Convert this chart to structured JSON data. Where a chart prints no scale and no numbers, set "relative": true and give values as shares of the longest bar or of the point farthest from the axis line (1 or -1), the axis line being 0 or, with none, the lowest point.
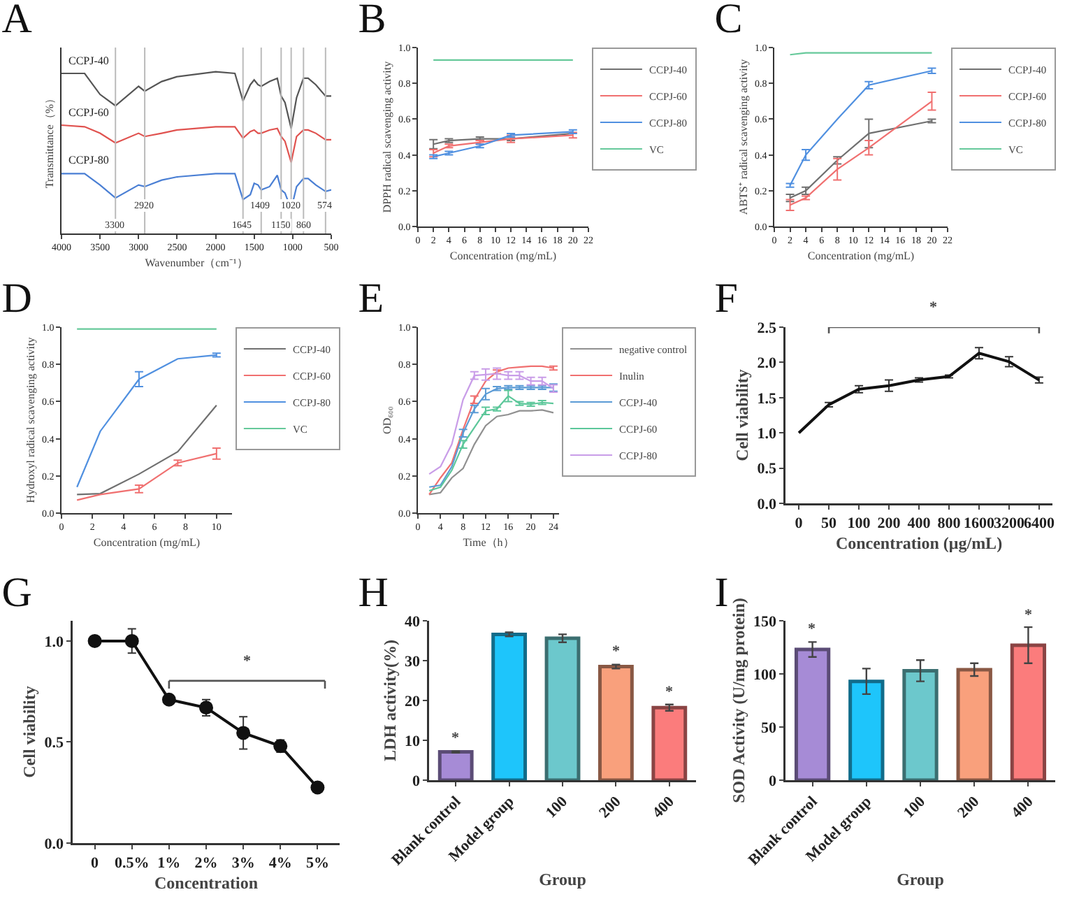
{
  "chart_data": [
    {
      "type": "line",
      "title": "A",
      "xlabel": "Wavenumber（cm⁻¹）",
      "ylabel": "Transmittance（%）",
      "relative": true,
      "legend": false,
      "grid": false,
      "xlim": [
        4000,
        500
      ],
      "xticks": [
        4000,
        3500,
        3000,
        2500,
        2000,
        1500,
        1000,
        500
      ],
      "x": [
        4000,
        3700,
        3500,
        3300,
        3000,
        2920,
        2700,
        2500,
        2000,
        1750,
        1645,
        1550,
        1500,
        1450,
        1409,
        1300,
        1200,
        1150,
        1100,
        1020,
        950,
        860,
        800,
        700,
        574,
        500
      ],
      "series": [
        {
          "name": "CCPJ-40",
          "color": "#555555",
          "values": [
            0.99,
            0.99,
            0.86,
            0.79,
            0.91,
            0.88,
            0.94,
            0.97,
            1.0,
            0.99,
            0.82,
            0.92,
            0.95,
            0.92,
            0.91,
            0.94,
            0.96,
            0.85,
            0.81,
            0.65,
            0.84,
            0.96,
            0.96,
            0.92,
            0.85,
            0.85
          ]
        },
        {
          "name": "CCPJ-60",
          "color": "#e0524f",
          "values": [
            0.67,
            0.66,
            0.62,
            0.56,
            0.62,
            0.6,
            0.62,
            0.64,
            0.66,
            0.66,
            0.59,
            0.63,
            0.64,
            0.62,
            0.62,
            0.64,
            0.65,
            0.6,
            0.57,
            0.44,
            0.6,
            0.64,
            0.64,
            0.62,
            0.58,
            0.58
          ]
        },
        {
          "name": "CCPJ-80",
          "color": "#4a7fd4",
          "values": [
            0.37,
            0.37,
            0.3,
            0.22,
            0.3,
            0.29,
            0.33,
            0.35,
            0.37,
            0.37,
            0.21,
            0.24,
            0.31,
            0.3,
            0.27,
            0.29,
            0.36,
            0.27,
            0.25,
            0.15,
            0.29,
            0.34,
            0.34,
            0.3,
            0.26,
            0.27
          ]
        }
      ],
      "ref_lines": [
        {
          "axis": "x",
          "value": 3300,
          "label": "3300",
          "color": "#bbbbbb"
        },
        {
          "axis": "x",
          "value": 2920,
          "label": "2920",
          "color": "#bbbbbb"
        },
        {
          "axis": "x",
          "value": 1645,
          "label": "1645",
          "color": "#bbbbbb"
        },
        {
          "axis": "x",
          "value": 1409,
          "label": "1409",
          "color": "#bbbbbb"
        },
        {
          "axis": "x",
          "value": 1150,
          "label": "1150",
          "color": "#bbbbbb"
        },
        {
          "axis": "x",
          "value": 1020,
          "label": "1020",
          "color": "#bbbbbb"
        },
        {
          "axis": "x",
          "value": 860,
          "label": "860",
          "color": "#bbbbbb"
        },
        {
          "axis": "x",
          "value": 574,
          "label": "574",
          "color": "#bbbbbb"
        }
      ]
    },
    {
      "type": "line",
      "title": "B",
      "xlabel": "Concentration (mg/mL)",
      "ylabel": "DPPH radical scavenging activity",
      "legend": "right",
      "grid": false,
      "x": [
        2,
        4,
        8,
        12,
        20
      ],
      "xlim": [
        0,
        22
      ],
      "xticks": [
        0,
        2,
        4,
        6,
        8,
        10,
        12,
        14,
        16,
        18,
        20,
        22
      ],
      "ylim": [
        0,
        1
      ],
      "yticks": [
        {
          "value": 0,
          "label": "0.0"
        },
        0.2,
        0.4,
        0.6,
        0.8,
        {
          "value": 1,
          "label": "1.0"
        }
      ],
      "series": [
        {
          "name": "CCPJ-40",
          "color": "#707070",
          "values": [
            0.46,
            0.48,
            0.49,
            0.49,
            0.52
          ],
          "errors": [
            0.025,
            0.01,
            0.01,
            0.01,
            null
          ]
        },
        {
          "name": "CCPJ-60",
          "color": "#f07070",
          "values": [
            0.41,
            0.45,
            0.47,
            0.49,
            0.51
          ],
          "errors": [
            0.02,
            0.01,
            0.01,
            0.02,
            0.015
          ]
        },
        {
          "name": "CCPJ-80",
          "color": "#5090e0",
          "values": [
            0.39,
            0.41,
            0.45,
            0.51,
            0.53
          ],
          "errors": [
            0.01,
            0.01,
            0.01,
            0.01,
            0.01
          ]
        },
        {
          "name": "VC",
          "color": "#66c99a",
          "values": [
            0.93,
            0.93,
            0.93,
            0.93,
            0.93
          ]
        }
      ]
    },
    {
      "type": "line",
      "title": "C",
      "xlabel": "Concentration (mg/mL)",
      "ylabel": "ABTS⁺ radical scavenging activity",
      "legend": "right",
      "grid": false,
      "x": [
        2,
        4,
        8,
        12,
        20
      ],
      "xlim": [
        0,
        22
      ],
      "xticks": [
        0,
        2,
        4,
        6,
        8,
        10,
        12,
        14,
        16,
        18,
        20,
        22
      ],
      "ylim": [
        0,
        1
      ],
      "yticks": [
        {
          "value": 0,
          "label": "0.0"
        },
        0.2,
        0.4,
        0.6,
        0.8,
        {
          "value": 1,
          "label": "1.0"
        }
      ],
      "series": [
        {
          "name": "CCPJ-40",
          "color": "#707070",
          "values": [
            0.16,
            0.2,
            0.37,
            0.52,
            0.59
          ],
          "errors": [
            0.02,
            0.02,
            0.02,
            0.08,
            0.01
          ]
        },
        {
          "name": "CCPJ-60",
          "color": "#f07070",
          "values": [
            0.12,
            0.16,
            0.32,
            0.44,
            0.7
          ],
          "errors": [
            0.03,
            0.01,
            0.06,
            0.04,
            0.05
          ]
        },
        {
          "name": "CCPJ-80",
          "color": "#5090e0",
          "values": [
            0.23,
            0.4,
            0.6,
            0.79,
            0.87
          ],
          "errors": [
            0.01,
            0.03,
            null,
            0.02,
            0.015
          ]
        },
        {
          "name": "VC",
          "color": "#66c99a",
          "values": [
            0.96,
            0.97,
            0.97,
            0.97,
            0.97
          ]
        }
      ]
    },
    {
      "type": "line",
      "title": "D",
      "xlabel": "Concentration (mg/mL)",
      "ylabel": "Hydroxyl radical scavenging activity",
      "legend": "right",
      "grid": false,
      "x": [
        1,
        2.5,
        5,
        7.5,
        10
      ],
      "xlim": [
        0,
        11
      ],
      "xticks": [
        0,
        2,
        4,
        6,
        8,
        10
      ],
      "ylim": [
        0,
        1
      ],
      "yticks": [
        {
          "value": 0,
          "label": "0.0"
        },
        0.2,
        0.4,
        0.6,
        0.8,
        {
          "value": 1,
          "label": "1.0"
        }
      ],
      "series": [
        {
          "name": "CCPJ-40",
          "color": "#707070",
          "values": [
            0.1,
            0.105,
            0.21,
            0.33,
            0.58
          ]
        },
        {
          "name": "CCPJ-60",
          "color": "#f07070",
          "values": [
            0.07,
            0.1,
            0.13,
            0.27,
            0.32
          ],
          "errors": [
            null,
            null,
            0.02,
            0.015,
            0.03
          ]
        },
        {
          "name": "CCPJ-80",
          "color": "#5090e0",
          "values": [
            0.14,
            0.44,
            0.72,
            0.83,
            0.85
          ],
          "errors": [
            null,
            null,
            0.04,
            null,
            0.01
          ]
        },
        {
          "name": "VC",
          "color": "#66c99a",
          "values": [
            0.99,
            0.99,
            0.99,
            0.99,
            0.99
          ]
        }
      ]
    },
    {
      "type": "line",
      "title": "E",
      "xlabel": "Time（h）",
      "ylabel": "OD₆₀₀",
      "legend": "right",
      "grid": false,
      "x": [
        2,
        4,
        6,
        8,
        10,
        12,
        14,
        16,
        18,
        20,
        22,
        24
      ],
      "xlim": [
        0,
        25
      ],
      "xticks": [
        0,
        4,
        8,
        12,
        16,
        20,
        24
      ],
      "ylim": [
        0,
        1
      ],
      "yticks": [
        {
          "value": 0,
          "label": "0.0"
        },
        0.2,
        0.4,
        0.6,
        0.8,
        {
          "value": 1,
          "label": "1.0"
        }
      ],
      "series": [
        {
          "name": "negative control",
          "color": "#909090",
          "values": [
            0.1,
            0.11,
            0.19,
            0.24,
            0.37,
            0.47,
            0.52,
            0.53,
            0.55,
            0.55,
            0.555,
            0.54
          ]
        },
        {
          "name": "Inulin",
          "color": "#f07070",
          "values": [
            0.1,
            0.19,
            0.27,
            0.45,
            0.61,
            0.71,
            0.76,
            0.78,
            0.785,
            0.79,
            0.79,
            0.78
          ],
          "errors": [
            null,
            null,
            null,
            null,
            0.02,
            null,
            0.01,
            null,
            null,
            null,
            null,
            0.01
          ]
        },
        {
          "name": "CCPJ-40",
          "color": "#5b9bd5",
          "values": [
            0.14,
            0.15,
            0.25,
            0.43,
            0.56,
            0.64,
            0.67,
            0.675,
            0.675,
            0.675,
            0.675,
            0.675
          ],
          "errors": [
            null,
            null,
            null,
            0.02,
            0.02,
            0.03,
            0.01,
            0.01,
            0.01,
            0.01,
            0.01,
            0.02
          ]
        },
        {
          "name": "CCPJ-60",
          "color": "#5cc79a",
          "values": [
            0.12,
            0.14,
            0.23,
            0.37,
            0.46,
            0.55,
            0.56,
            0.63,
            0.59,
            0.585,
            0.595,
            0.59
          ],
          "errors": [
            null,
            null,
            null,
            0.02,
            null,
            0.02,
            0.01,
            0.03,
            0.01,
            0.01,
            0.01,
            null
          ]
        },
        {
          "name": "CCPJ-80",
          "color": "#c99de8",
          "values": [
            0.21,
            0.25,
            0.37,
            0.61,
            0.74,
            0.745,
            0.75,
            0.74,
            0.74,
            0.71,
            0.71,
            0.67
          ],
          "errors": [
            null,
            null,
            null,
            null,
            0.02,
            0.03,
            0.03,
            0.02,
            0.02,
            0.02,
            0.02,
            0.02
          ]
        }
      ]
    },
    {
      "type": "line",
      "title": "F",
      "xlabel": "Concentration (μg/mL)",
      "ylabel": "Cell viability",
      "grid": false,
      "categories": [
        "0",
        "50",
        "100",
        "200",
        "400",
        "800",
        "1600",
        "3200",
        "6400"
      ],
      "values": [
        1.0,
        1.4,
        1.62,
        1.67,
        1.75,
        1.8,
        2.13,
        2.01,
        1.75
      ],
      "errors": [
        null,
        0.03,
        0.05,
        0.08,
        0.03,
        0.02,
        0.08,
        0.07,
        0.04
      ],
      "color": "#111111",
      "ylim": [
        0,
        2.5
      ],
      "yticks": [
        {
          "value": 0,
          "label": "0.0"
        },
        0.5,
        {
          "value": 1,
          "label": "1.0"
        },
        1.5,
        {
          "value": 2,
          "label": "2.0"
        },
        2.5
      ],
      "annotations": [
        "*"
      ]
    },
    {
      "type": "line",
      "title": "G",
      "xlabel": "Concentration",
      "ylabel": "Cell viability",
      "grid": false,
      "marker": "circle",
      "categories": [
        "0",
        "0.5%",
        "1%",
        "2%",
        "3%",
        "4%",
        "5%"
      ],
      "values": [
        1.0,
        1.0,
        0.71,
        0.67,
        0.545,
        0.48,
        0.275
      ],
      "errors": [
        null,
        0.06,
        0.01,
        0.04,
        0.08,
        0.03,
        0.01
      ],
      "color": "#111111",
      "ylim": [
        0,
        1.1
      ],
      "yticks": [
        {
          "value": 0,
          "label": "0.0"
        },
        0.5,
        {
          "value": 1,
          "label": "1.0"
        }
      ],
      "annotations": [
        "*"
      ]
    },
    {
      "type": "bar",
      "title": "H",
      "xlabel": "Group",
      "ylabel": "LDH activity(%)",
      "grid": false,
      "categories": [
        "Blank control",
        "Model group",
        "100",
        "200",
        "400"
      ],
      "values": [
        7.1,
        36.6,
        35.6,
        28.5,
        18.2
      ],
      "errors": [
        0.2,
        0.5,
        1.0,
        0.5,
        0.8
      ],
      "colors": [
        "#a68bd6",
        "#1ec5fb",
        "#6cc8cc",
        "#f9a07c",
        "#fb7c7c"
      ],
      "ylim": [
        0,
        40
      ],
      "yticks": [
        0,
        10,
        20,
        30,
        40
      ],
      "annotations": [
        {
          "text": "*",
          "x": "Blank control",
          "y": 7.3
        },
        {
          "text": "*",
          "x": "200",
          "y": 29
        },
        {
          "text": "*",
          "x": "400",
          "y": 19
        }
      ]
    },
    {
      "type": "bar",
      "title": "I",
      "xlabel": "Group",
      "ylabel": "SOD Activity (U/mg protein)",
      "grid": false,
      "categories": [
        "Blank control",
        "Model group",
        "100",
        "200",
        "400"
      ],
      "values": [
        123,
        93,
        103,
        104,
        127
      ],
      "errors": [
        7,
        12,
        10,
        6,
        17
      ],
      "colors": [
        "#a68bd6",
        "#1ec5fb",
        "#6cc8cc",
        "#f9a07c",
        "#fb7c7c"
      ],
      "ylim": [
        0,
        150
      ],
      "yticks": [
        0,
        50,
        100,
        150
      ],
      "annotations": [
        {
          "text": "*",
          "x": "Blank control",
          "y": 130
        },
        {
          "text": "*",
          "x": "400",
          "y": 144
        }
      ]
    }
  ]
}
